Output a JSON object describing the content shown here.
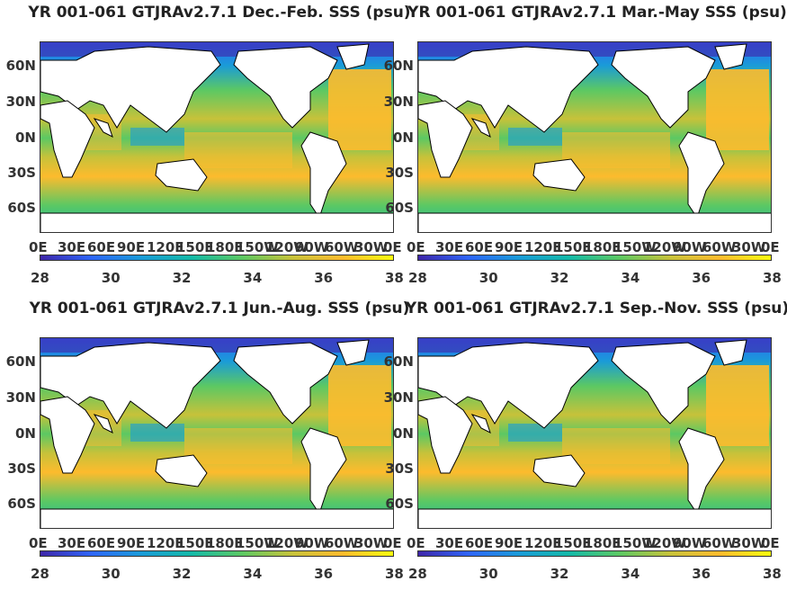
{
  "panels": [
    {
      "title": "YR 001-061 GTJRAv2.7.1 Dec.-Feb. SSS (psu)"
    },
    {
      "title": "YR 001-061 GTJRAv2.7.1 Mar.-May SSS (psu)"
    },
    {
      "title": "YR 001-061 GTJRAv2.7.1 Jun.-Aug. SSS (psu)"
    },
    {
      "title": "YR 001-061 GTJRAv2.7.1 Sep.-Nov. SSS (psu)"
    }
  ],
  "lat_labels": [
    "60N",
    "30N",
    "0N",
    "30S",
    "60S"
  ],
  "lon_labels": [
    "0E",
    "30E",
    "60E",
    "90E",
    "120E",
    "150E",
    "180E",
    "150W",
    "120W",
    "90W",
    "60W",
    "30W",
    "0E"
  ],
  "colorbar": {
    "ticks": [
      "28",
      "30",
      "32",
      "34",
      "36",
      "38"
    ],
    "min": 28,
    "max": 38,
    "colors": [
      "#3e26a8",
      "#2f65f7",
      "#1a9bd8",
      "#14b9a7",
      "#5cc863",
      "#c7c23a",
      "#fdbb2d",
      "#f9fb0e"
    ]
  }
}
